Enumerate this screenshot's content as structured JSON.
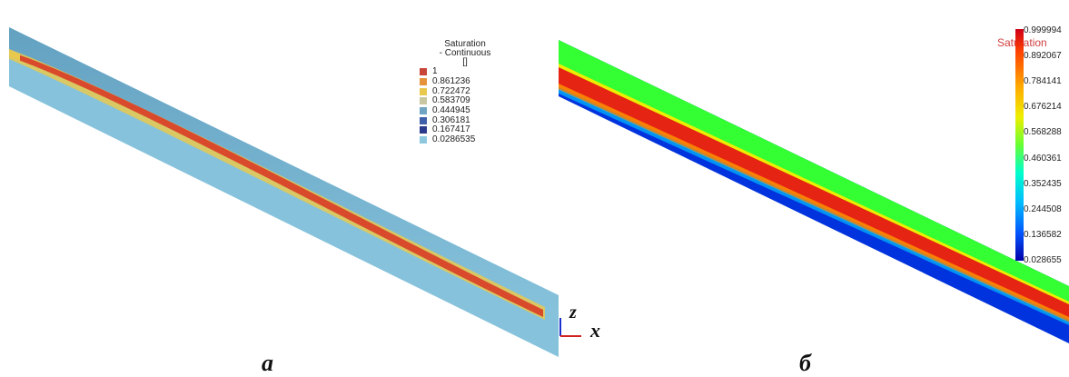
{
  "panel_a": {
    "legend_title_line1": "Saturation",
    "legend_title_line2": "- Continuous",
    "legend_title_line3": "[]",
    "legend_items": [
      {
        "label": "1",
        "color": "#c8453a"
      },
      {
        "label": "0.861236",
        "color": "#e5933a"
      },
      {
        "label": "0.722472",
        "color": "#e8c94e"
      },
      {
        "label": "0.583709",
        "color": "#c9c7a0"
      },
      {
        "label": "0.444945",
        "color": "#6fa5c2"
      },
      {
        "label": "0.306181",
        "color": "#3f5fa8"
      },
      {
        "label": "0.167417",
        "color": "#2c3a8c"
      },
      {
        "label": "0.0286535",
        "color": "#8ec8df"
      }
    ],
    "caption": "а",
    "axis_z": "z",
    "axis_x": "x"
  },
  "panel_b": {
    "legend_title": "Saturation",
    "ticks": [
      "0.999994",
      "0.892067",
      "0.784141",
      "0.676214",
      "0.568288",
      "0.460361",
      "0.352435",
      "0.244508",
      "0.136582",
      "0.028655"
    ],
    "caption": "б"
  },
  "colors": {
    "a_background": "#86c2db",
    "a_core": "#d94a2c",
    "b_top": "#33ff33",
    "b_bottom": "#0033dd",
    "b_core": "#e52414"
  }
}
